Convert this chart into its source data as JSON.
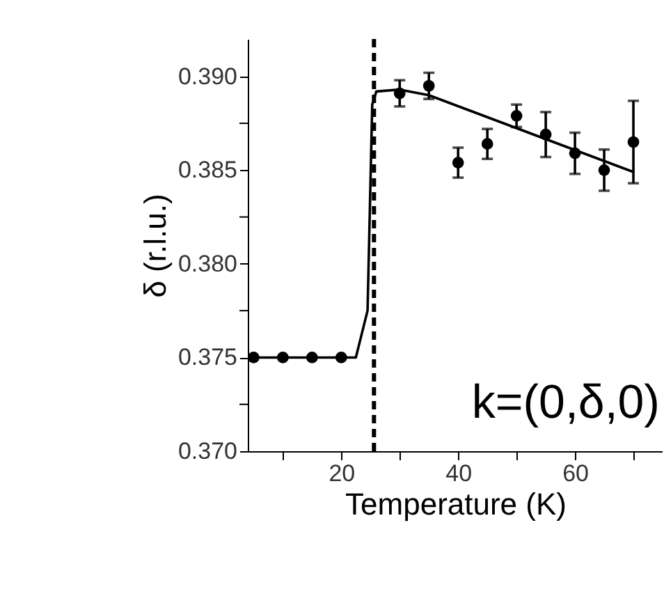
{
  "chart_data": {
    "type": "scatter",
    "xlabel": "Temperature (K)",
    "ylabel": "δ (r.l.u.)",
    "x": [
      5,
      10,
      15,
      20,
      30,
      35,
      40,
      45,
      50,
      55,
      60,
      65,
      70
    ],
    "xlim": [
      4,
      75
    ],
    "xticks": [
      {
        "value": 10,
        "label": null
      },
      20,
      {
        "value": 30,
        "label": null
      },
      40,
      {
        "value": 50,
        "label": null
      },
      60,
      {
        "value": 70,
        "label": null
      }
    ],
    "ylim": [
      0.37,
      0.392
    ],
    "yticks": [
      {
        "value": 0.37,
        "label": "0.370"
      },
      {
        "value": 0.3725,
        "label": null
      },
      {
        "value": 0.375,
        "label": "0.375"
      },
      {
        "value": 0.3775,
        "label": null
      },
      {
        "value": 0.38,
        "label": "0.380"
      },
      {
        "value": 0.3825,
        "label": null
      },
      {
        "value": 0.385,
        "label": "0.385"
      },
      {
        "value": 0.3875,
        "label": null
      },
      {
        "value": 0.39,
        "label": "0.390"
      }
    ],
    "series": [
      {
        "type": "line",
        "color": "#000000",
        "marker": "none",
        "x": [
          5,
          20,
          22.5,
          24.5,
          25.3,
          26,
          30,
          35,
          70
        ],
        "values": [
          0.375,
          0.375,
          0.375,
          0.3775,
          0.3885,
          0.3892,
          0.3893,
          0.389,
          0.3849
        ]
      },
      {
        "color": "#000000",
        "marker": "circle",
        "values": [
          0.375,
          0.375,
          0.375,
          0.375,
          0.3891,
          0.3895,
          0.3854,
          0.3864,
          0.3879,
          0.3869,
          0.3859,
          0.385,
          0.3865
        ],
        "errors": [
          null,
          null,
          null,
          null,
          0.0007,
          0.0007,
          0.0008,
          0.0008,
          0.0006,
          0.0012,
          0.0011,
          0.0011,
          0.0022
        ]
      }
    ],
    "ref_lines": [
      {
        "axis": "x",
        "value": 25.6,
        "line_style": "dashed",
        "color": "#000000"
      }
    ],
    "annotations": [
      "k=(0,δ,0)"
    ],
    "grid": false
  }
}
